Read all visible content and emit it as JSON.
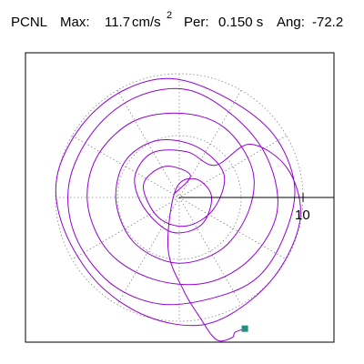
{
  "header": {
    "station": "PCNL",
    "max_label": "Max:",
    "max_value": "11.7",
    "max_unit": "cm/s",
    "max_unit_exponent": "2",
    "period_label": "Per:",
    "period_value": "0.150 s",
    "angle_label": "Ang:",
    "angle_value": "-72.2"
  },
  "chart_data": {
    "type": "line",
    "title": "",
    "xlabel": "",
    "ylabel": "",
    "polar_grid": true,
    "grid_rings": [
      5,
      10
    ],
    "radial_tick_label": "10",
    "axis_range": [
      -12.5,
      12.5
    ],
    "max_amplitude": 11.7,
    "series": [
      {
        "color": "#9400d3",
        "description_values_estimated": true,
        "points": [
          [
            -0.4,
            0.3
          ],
          [
            0.9,
            1.8
          ],
          [
            -1.2,
            2.5
          ],
          [
            -2.9,
            1.0
          ],
          [
            -1.7,
            -1.6
          ],
          [
            0.6,
            -2.3
          ],
          [
            2.8,
            -0.9
          ],
          [
            3.6,
            1.9
          ],
          [
            1.4,
            4.1
          ],
          [
            -1.8,
            4.6
          ],
          [
            -4.4,
            2.9
          ],
          [
            -5.1,
            -0.4
          ],
          [
            -3.6,
            -3.7
          ],
          [
            -0.2,
            -5.3
          ],
          [
            3.4,
            -4.2
          ],
          [
            5.6,
            -1.1
          ],
          [
            5.9,
            2.3
          ],
          [
            3.7,
            5.6
          ],
          [
            0.2,
            6.8
          ],
          [
            -3.8,
            6.1
          ],
          [
            -6.7,
            3.2
          ],
          [
            -7.4,
            -0.6
          ],
          [
            -5.7,
            -4.4
          ],
          [
            -2.1,
            -6.6
          ],
          [
            2.2,
            -6.9
          ],
          [
            5.8,
            -4.9
          ],
          [
            7.9,
            -1.2
          ],
          [
            7.2,
            3.0
          ],
          [
            4.6,
            6.4
          ],
          [
            0.7,
            8.7
          ],
          [
            -3.5,
            8.1
          ],
          [
            -6.9,
            5.4
          ],
          [
            -8.9,
            1.2
          ],
          [
            -8.4,
            -3.1
          ],
          [
            -5.6,
            -6.9
          ],
          [
            -1.6,
            -8.6
          ],
          [
            2.8,
            -8.1
          ],
          [
            6.4,
            -6.4
          ],
          [
            8.6,
            -2.8
          ],
          [
            9.3,
            1.1
          ],
          [
            7.6,
            5.1
          ],
          [
            3.9,
            8.0
          ],
          [
            -0.6,
            9.6
          ],
          [
            -4.6,
            8.6
          ],
          [
            -7.9,
            5.8
          ],
          [
            -9.9,
            1.6
          ],
          [
            -9.3,
            -2.6
          ],
          [
            -6.6,
            -6.9
          ],
          [
            -2.6,
            -9.6
          ],
          [
            1.8,
            -10.3
          ],
          [
            5.4,
            -8.6
          ],
          [
            8.3,
            -5.5
          ],
          [
            9.8,
            -1.4
          ],
          [
            8.7,
            2.4
          ],
          [
            5.7,
            4.3
          ],
          [
            2.9,
            2.6
          ],
          [
            0.6,
            3.7
          ],
          [
            -2.2,
            3.6
          ],
          [
            -3.6,
            1.6
          ],
          [
            -2.8,
            -0.9
          ],
          [
            -0.6,
            -2.8
          ],
          [
            1.8,
            -2.2
          ],
          [
            2.6,
            0.1
          ],
          [
            1.3,
            1.5
          ],
          [
            -0.3,
            0.6
          ],
          [
            -0.9,
            -4.2
          ],
          [
            0.4,
            -7.6
          ],
          [
            1.8,
            -9.9
          ],
          [
            2.6,
            -11.1
          ],
          [
            3.3,
            -11.6
          ],
          [
            4.3,
            -11.3
          ],
          [
            4.5,
            -10.9
          ],
          [
            5.3,
            -10.6
          ]
        ]
      }
    ],
    "end_marker": {
      "x": 5.3,
      "y": -10.6,
      "color": "#20907a"
    }
  }
}
